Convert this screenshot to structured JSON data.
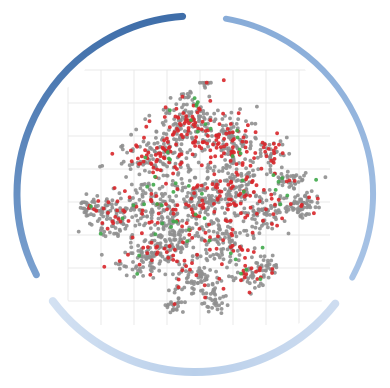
{
  "chart_data": {
    "type": "scatter",
    "title": "",
    "xlabel": "",
    "ylabel": "",
    "grid": true,
    "legend": "none",
    "series": [
      {
        "color": "#8f8f8f",
        "approx_points": 1400
      },
      {
        "color": "#d8262a",
        "approx_points": 900
      },
      {
        "color": "#3fa84a",
        "approx_points": 60
      }
    ]
  },
  "ring": {
    "arc_colors_top_to_bottom": [
      "#5c86bb",
      "#7ea4d3",
      "#c2d6ee"
    ]
  },
  "colors": {
    "grid": "#e9e9e9",
    "background": "#ffffff"
  }
}
